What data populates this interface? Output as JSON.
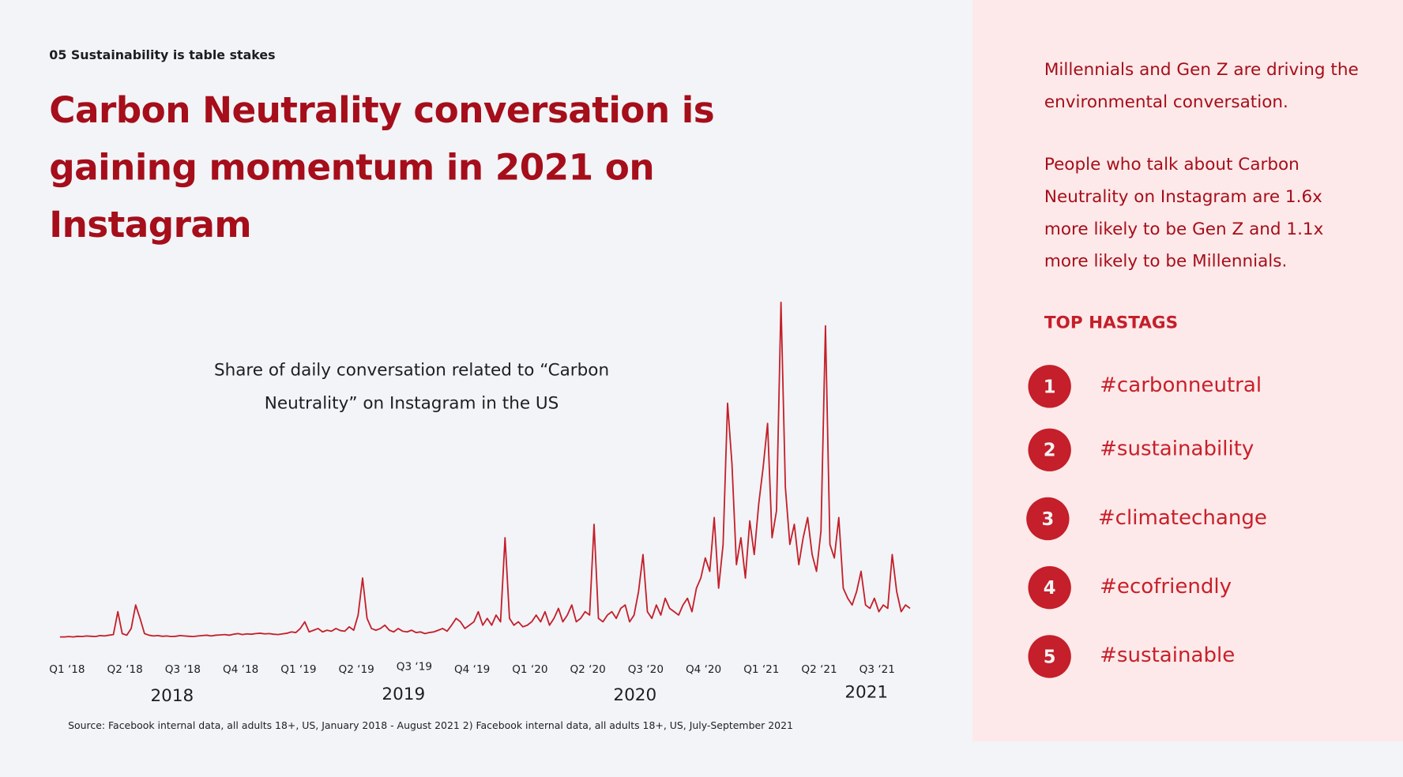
{
  "header": {
    "kicker": "05 Sustainability is table stakes",
    "title": "Carbon Neutrality conversation is gaining momentum in 2021 on Instagram"
  },
  "chart_data": {
    "type": "line",
    "title": "Share of daily conversation related to “Carbon Neutrality” on Instagram in the US",
    "xlabel": "",
    "ylabel": "",
    "x_tick_labels": [
      "Q1 ‘18",
      "Q2 ‘18",
      "Q3 ‘18",
      "Q4 ‘18",
      "Q1 ‘19",
      "Q2 ‘19",
      "Q3 ‘19",
      "Q4 ‘19",
      "Q1 ‘20",
      "Q2 ‘20",
      "Q3 ‘20",
      "Q4 ‘20",
      "Q1 ‘21",
      "Q2 ‘21",
      "Q3 ‘21"
    ],
    "year_labels": [
      "2018",
      "2019",
      "2020",
      "2021"
    ],
    "x_range": [
      "2018-01",
      "2021-09"
    ],
    "y_units": "relative share (peak = 100), approximate weekly readings",
    "ylim": [
      0,
      100
    ],
    "grid": false,
    "color": "#c41f2a",
    "values": [
      0.5,
      0.5,
      0.6,
      0.5,
      0.7,
      0.6,
      0.8,
      0.7,
      0.6,
      0.9,
      0.8,
      1,
      1.2,
      8,
      1.5,
      1,
      3,
      10,
      6,
      1.5,
      1,
      0.8,
      0.9,
      0.7,
      0.8,
      0.6,
      0.7,
      0.9,
      0.8,
      0.7,
      0.6,
      0.8,
      0.9,
      1,
      0.8,
      1,
      1.1,
      1.2,
      1,
      1.3,
      1.5,
      1.2,
      1.4,
      1.3,
      1.5,
      1.6,
      1.4,
      1.5,
      1.3,
      1.2,
      1.4,
      1.6,
      2,
      1.8,
      3,
      5,
      2,
      2.5,
      3,
      2,
      2.5,
      2.2,
      3,
      2.4,
      2.2,
      3.5,
      2.5,
      7,
      18,
      6,
      3,
      2.5,
      3,
      4,
      2.5,
      2,
      3,
      2.2,
      2,
      2.5,
      1.8,
      2,
      1.5,
      1.8,
      2,
      2.5,
      3,
      2.2,
      4,
      6,
      5,
      3,
      4,
      5,
      8,
      4,
      6,
      4,
      7,
      5,
      30,
      6,
      4,
      5,
      3.5,
      4,
      5,
      7,
      5,
      8,
      4,
      6,
      9,
      5,
      7,
      10,
      5,
      6,
      8,
      7,
      34,
      6,
      5,
      7,
      8,
      6,
      9,
      10,
      5,
      7,
      14,
      25,
      8,
      6,
      10,
      7,
      12,
      9,
      8,
      7,
      10,
      12,
      8,
      15,
      18,
      24,
      20,
      36,
      15,
      28,
      70,
      52,
      22,
      30,
      18,
      35,
      25,
      40,
      51,
      64,
      30,
      38,
      100,
      45,
      28,
      34,
      22,
      30,
      36,
      25,
      20,
      32,
      93,
      28,
      24,
      36,
      15,
      12,
      10,
      14,
      20,
      10,
      9,
      12,
      8,
      10,
      9,
      25,
      14,
      8,
      10,
      9
    ]
  },
  "source": "Source: Facebook internal data, all adults 18+, US, January 2018 - August 2021 2) Facebook internal data, all adults 18+, US, July-September 2021",
  "panel": {
    "para1": "Millennials and Gen Z are driving the environmental conversation.",
    "para2": "People who talk about Carbon Neutrality on Instagram are 1.6x more likely to be Gen Z and 1.1x more likely to be Millennials.",
    "heading": "TOP HASTAGS",
    "hashtags": [
      {
        "rank": "1",
        "label": "#carbonneutral"
      },
      {
        "rank": "2",
        "label": "#sustainability"
      },
      {
        "rank": "3",
        "label": "#climatechange"
      },
      {
        "rank": "4",
        "label": "#ecofriendly"
      },
      {
        "rank": "5",
        "label": "#sustainable"
      }
    ]
  }
}
